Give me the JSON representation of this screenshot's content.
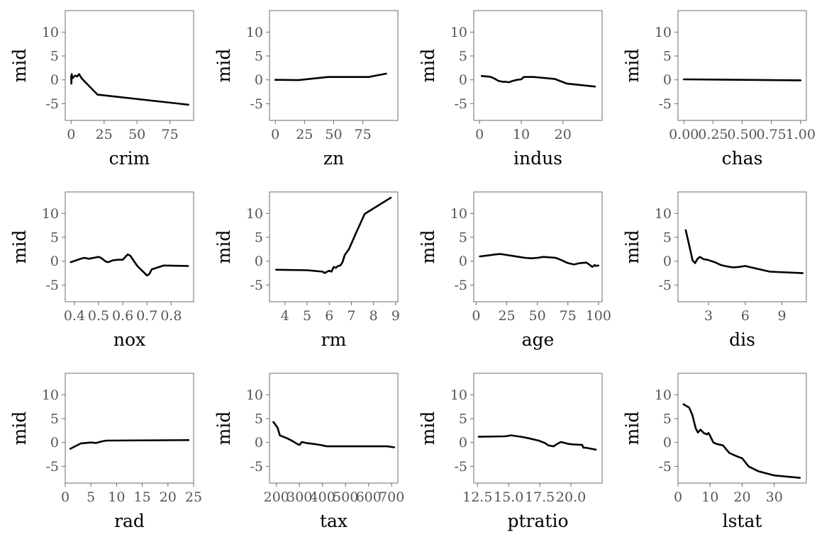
{
  "chart_data": [
    {
      "type": "line",
      "xlabel": "crim",
      "ylabel": "mid",
      "ylim": [
        -8.5,
        14.5
      ],
      "yticks": [
        -5,
        0,
        5,
        10
      ],
      "xlim": [
        -4.5,
        93
      ],
      "xticks": [
        0,
        25,
        50,
        75
      ],
      "x": [
        0.0,
        0.15,
        0.4,
        0.8,
        1.5,
        3,
        4.5,
        6,
        8,
        20,
        89
      ],
      "y": [
        0.8,
        -0.8,
        1.2,
        0.3,
        0.5,
        0.9,
        0.7,
        1.2,
        0.3,
        -3.1,
        -5.2
      ]
    },
    {
      "type": "line",
      "xlabel": "zn",
      "ylabel": "mid",
      "ylim": [
        -8.5,
        14.5
      ],
      "yticks": [
        -5,
        0,
        5,
        10
      ],
      "xlim": [
        -5,
        105
      ],
      "xticks": [
        0,
        25,
        50,
        75
      ],
      "x": [
        0,
        20,
        45,
        80,
        95
      ],
      "y": [
        0.0,
        -0.05,
        0.6,
        0.6,
        1.3
      ]
    },
    {
      "type": "line",
      "xlabel": "indus",
      "ylabel": "mid",
      "ylim": [
        -8.5,
        14.5
      ],
      "yticks": [
        -5,
        0,
        5,
        10
      ],
      "xlim": [
        -1.4,
        29.4
      ],
      "xticks": [
        0,
        10,
        20
      ],
      "x": [
        0.5,
        2.5,
        3.5,
        4.5,
        5.5,
        6.2,
        7.0,
        8.0,
        9.0,
        10.0,
        10.6,
        13.0,
        18.0,
        21.0,
        27.7
      ],
      "y": [
        0.8,
        0.65,
        0.3,
        -0.2,
        -0.4,
        -0.4,
        -0.5,
        -0.2,
        0.0,
        0.1,
        0.6,
        0.6,
        0.2,
        -0.8,
        -1.4
      ]
    },
    {
      "type": "line",
      "xlabel": "chas",
      "ylabel": "mid",
      "ylim": [
        -8.5,
        14.5
      ],
      "yticks": [
        -5,
        0,
        5,
        10
      ],
      "xlim": [
        -0.05,
        1.05
      ],
      "xticks": [
        0.0,
        0.25,
        0.5,
        0.75,
        1.0
      ],
      "xtick_labels": [
        "0.00",
        "0.25",
        "0.50",
        "0.75",
        "1.00"
      ],
      "x": [
        0,
        1
      ],
      "y": [
        0.1,
        -0.1
      ]
    },
    {
      "type": "line",
      "xlabel": "nox",
      "ylabel": "mid",
      "ylim": [
        -8.5,
        14.5
      ],
      "yticks": [
        -5,
        0,
        5,
        10
      ],
      "xlim": [
        0.362,
        0.893
      ],
      "xticks": [
        0.4,
        0.5,
        0.6,
        0.7,
        0.8
      ],
      "xtick_labels": [
        "0.4",
        "0.5",
        "0.6",
        "0.7",
        "0.8"
      ],
      "x": [
        0.385,
        0.42,
        0.44,
        0.46,
        0.48,
        0.5,
        0.51,
        0.53,
        0.54,
        0.56,
        0.58,
        0.6,
        0.62,
        0.63,
        0.66,
        0.68,
        0.7,
        0.71,
        0.72,
        0.77,
        0.87
      ],
      "y": [
        -0.2,
        0.4,
        0.7,
        0.5,
        0.7,
        0.9,
        0.7,
        -0.1,
        -0.2,
        0.2,
        0.3,
        0.3,
        1.4,
        1.2,
        -1.0,
        -2.0,
        -3.0,
        -2.7,
        -1.7,
        -0.9,
        -1.0
      ]
    },
    {
      "type": "line",
      "xlabel": "rm",
      "ylabel": "mid",
      "ylim": [
        -8.5,
        14.5
      ],
      "yticks": [
        -5,
        0,
        5,
        10
      ],
      "xlim": [
        3.3,
        9.1
      ],
      "xticks": [
        4,
        5,
        6,
        7,
        8,
        9
      ],
      "x": [
        3.6,
        5.0,
        5.7,
        5.8,
        5.9,
        6.0,
        6.1,
        6.2,
        6.3,
        6.4,
        6.5,
        6.6,
        6.7,
        6.9,
        7.2,
        7.6,
        8.78
      ],
      "y": [
        -1.8,
        -1.9,
        -2.2,
        -2.5,
        -2.2,
        -2.0,
        -2.2,
        -1.2,
        -1.4,
        -1.0,
        -0.9,
        -0.2,
        1.3,
        2.6,
        5.8,
        9.9,
        13.3
      ]
    },
    {
      "type": "line",
      "xlabel": "age",
      "ylabel": "mid",
      "ylim": [
        -8.5,
        14.5
      ],
      "yticks": [
        -5,
        0,
        5,
        10
      ],
      "xlim": [
        -2,
        103
      ],
      "xticks": [
        0,
        25,
        50,
        75,
        100
      ],
      "x": [
        3,
        10,
        15,
        20,
        25,
        30,
        35,
        40,
        45,
        50,
        55,
        60,
        65,
        70,
        75,
        80,
        85,
        90,
        92,
        95,
        97,
        98,
        100
      ],
      "y": [
        1.0,
        1.2,
        1.4,
        1.5,
        1.3,
        1.1,
        0.9,
        0.7,
        0.6,
        0.7,
        0.9,
        0.8,
        0.7,
        0.2,
        -0.4,
        -0.7,
        -0.4,
        -0.3,
        -0.6,
        -1.2,
        -0.8,
        -1.0,
        -0.9
      ]
    },
    {
      "type": "line",
      "xlabel": "dis",
      "ylabel": "mid",
      "ylim": [
        -8.5,
        14.5
      ],
      "yticks": [
        -5,
        0,
        5,
        10
      ],
      "xlim": [
        0.5,
        11.0
      ],
      "xticks": [
        3,
        6,
        9
      ],
      "x": [
        1.13,
        1.4,
        1.7,
        1.9,
        2.1,
        2.3,
        2.6,
        2.9,
        3.5,
        4.0,
        4.5,
        5.0,
        5.5,
        6.0,
        6.5,
        7.0,
        8.0,
        10.7
      ],
      "y": [
        6.5,
        3.5,
        0.1,
        -0.4,
        0.5,
        0.9,
        0.4,
        0.3,
        -0.2,
        -0.8,
        -1.1,
        -1.3,
        -1.2,
        -1.0,
        -1.3,
        -1.6,
        -2.2,
        -2.5
      ]
    },
    {
      "type": "line",
      "xlabel": "rad",
      "ylabel": "mid",
      "ylim": [
        -8.5,
        14.5
      ],
      "yticks": [
        -5,
        0,
        5,
        10
      ],
      "xlim": [
        0,
        25
      ],
      "xticks": [
        0,
        5,
        10,
        15,
        20,
        25
      ],
      "x": [
        1,
        3,
        5,
        6,
        7,
        8,
        24
      ],
      "y": [
        -1.3,
        -0.2,
        0.0,
        -0.1,
        0.2,
        0.4,
        0.5
      ]
    },
    {
      "type": "line",
      "xlabel": "tax",
      "ylabel": "mid",
      "ylim": [
        -8.5,
        14.5
      ],
      "yticks": [
        -5,
        0,
        5,
        10
      ],
      "xlim": [
        170,
        727
      ],
      "xticks": [
        200,
        300,
        400,
        500,
        600,
        700
      ],
      "x": [
        187,
        205,
        215,
        250,
        270,
        290,
        300,
        305,
        310,
        330,
        360,
        390,
        400,
        420,
        450,
        500,
        550,
        600,
        650,
        680,
        711
      ],
      "y": [
        4.3,
        3.1,
        1.5,
        0.8,
        0.3,
        -0.3,
        -0.5,
        -0.2,
        0.1,
        -0.1,
        -0.3,
        -0.5,
        -0.6,
        -0.8,
        -0.8,
        -0.8,
        -0.8,
        -0.8,
        -0.8,
        -0.8,
        -1.0
      ]
    },
    {
      "type": "line",
      "xlabel": "ptratio",
      "ylabel": "mid",
      "ylim": [
        -8.5,
        14.5
      ],
      "yticks": [
        -5,
        0,
        5,
        10
      ],
      "xlim": [
        12.2,
        22.5
      ],
      "xticks": [
        12.5,
        15.0,
        17.5,
        20.0
      ],
      "xtick_labels": [
        "12.5",
        "15.0",
        "17.5",
        "20.0"
      ],
      "x": [
        12.6,
        14.7,
        15.2,
        16.0,
        16.6,
        17.4,
        17.9,
        18.2,
        18.6,
        18.9,
        19.1,
        19.2,
        19.8,
        20.2,
        20.9,
        21.0,
        21.2,
        22.0
      ],
      "y": [
        1.2,
        1.3,
        1.5,
        1.2,
        0.9,
        0.4,
        -0.1,
        -0.6,
        -0.8,
        -0.3,
        0.0,
        0.1,
        -0.3,
        -0.4,
        -0.5,
        -1.1,
        -1.1,
        -1.5
      ]
    },
    {
      "type": "line",
      "xlabel": "lstat",
      "ylabel": "mid",
      "ylim": [
        -8.5,
        14.5
      ],
      "yticks": [
        -5,
        0,
        5,
        10
      ],
      "xlim": [
        0,
        40
      ],
      "xticks": [
        0,
        10,
        20,
        30
      ],
      "x": [
        1.73,
        3.5,
        4.5,
        5.5,
        6.2,
        7.0,
        8.0,
        9.0,
        9.5,
        10.0,
        11.0,
        12.0,
        14.0,
        16.0,
        18.0,
        20.0,
        22.0,
        25.0,
        30.0,
        37.97
      ],
      "y": [
        8.0,
        7.3,
        5.7,
        3.0,
        2.1,
        2.7,
        2.0,
        1.7,
        2.0,
        1.4,
        0.0,
        -0.3,
        -0.6,
        -2.2,
        -2.8,
        -3.3,
        -5.0,
        -6.0,
        -6.9,
        -7.4
      ]
    }
  ]
}
